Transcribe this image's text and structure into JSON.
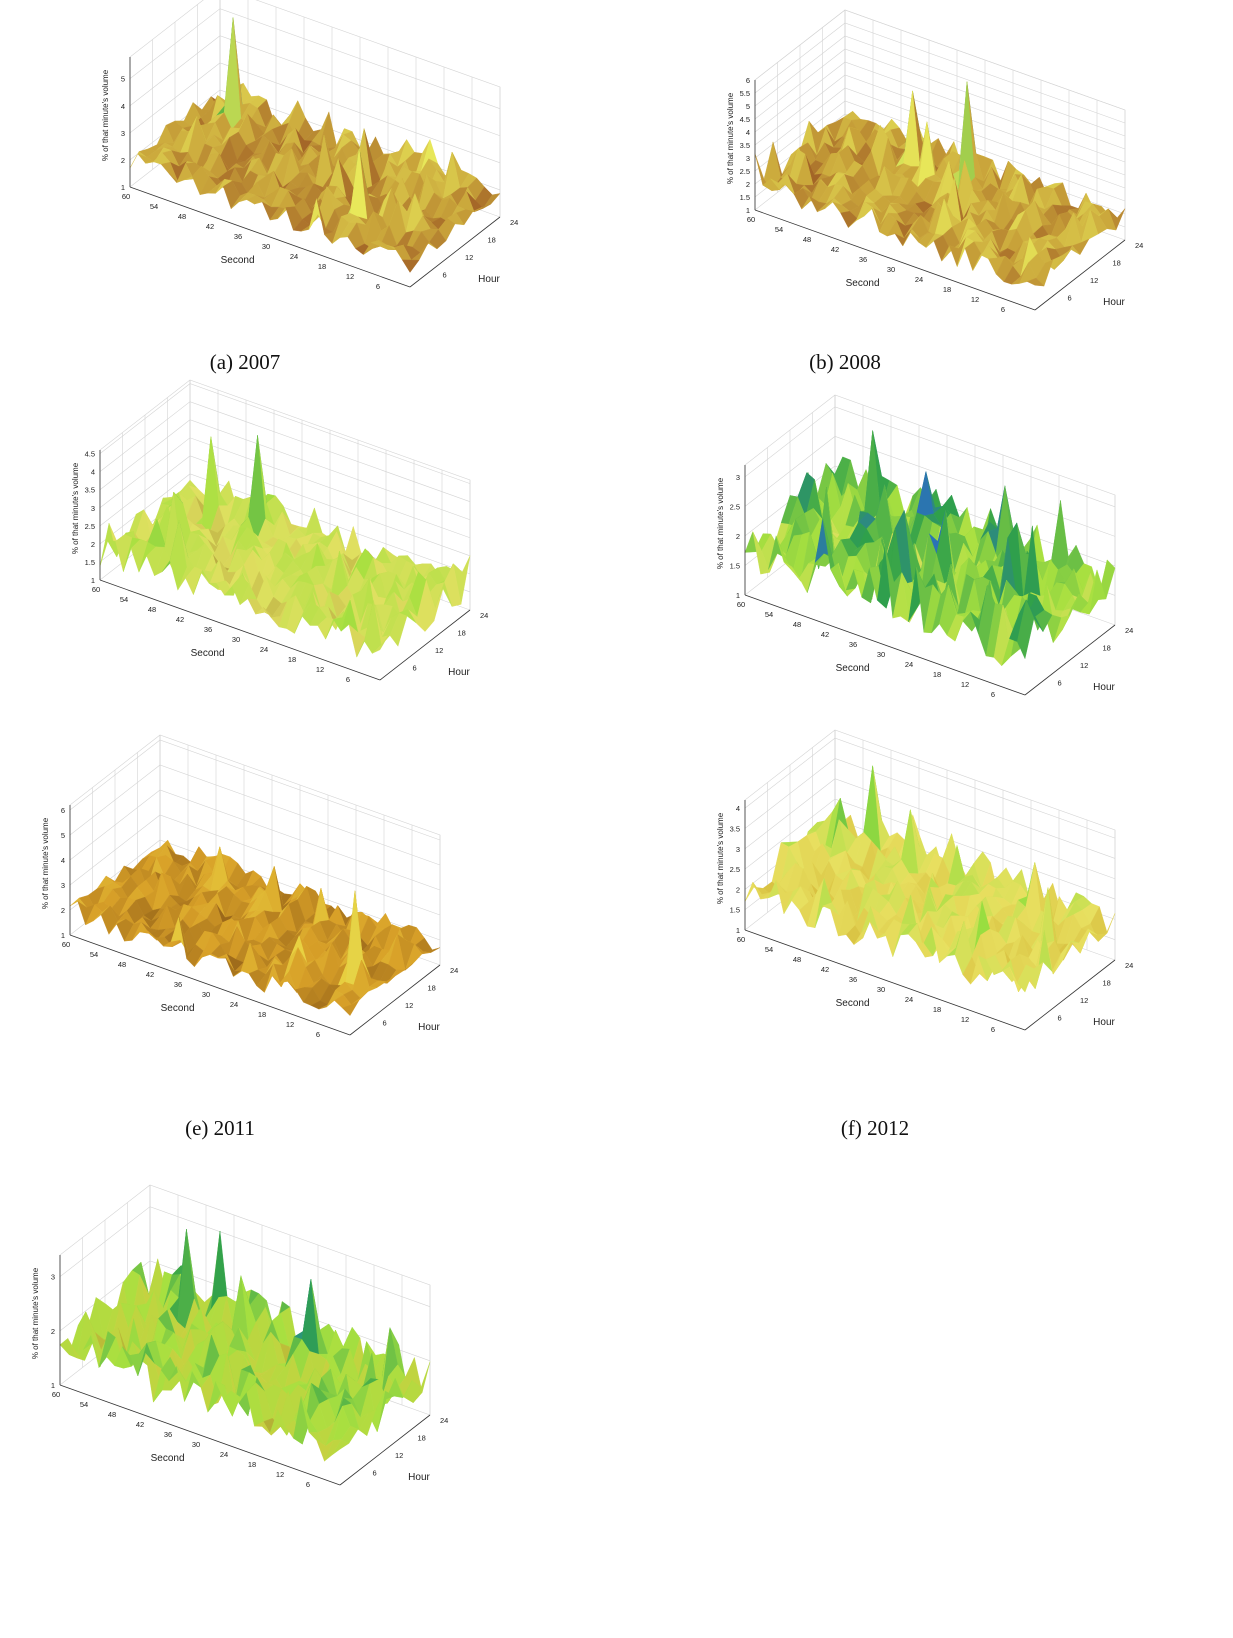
{
  "chart_data": [
    {
      "type": "surface3d",
      "caption": "(a) 2007",
      "xlabel": "Second",
      "ylabel": "Hour",
      "zlabel": "% of that minute's volume",
      "x_ticks": [
        "60",
        "54",
        "48",
        "42",
        "36",
        "30",
        "24",
        "18",
        "12",
        "6"
      ],
      "y_ticks": [
        "6",
        "12",
        "18",
        "24"
      ],
      "z_ticks": [
        "1",
        "2",
        "3",
        "4",
        "5"
      ],
      "zlim": [
        1,
        5.8
      ],
      "base_level": 1.9,
      "peaks": [
        {
          "second": 53,
          "hour": 20,
          "value": 5.6
        },
        {
          "second": 17,
          "hour": 6,
          "value": 4.3
        },
        {
          "second": 24,
          "hour": 16,
          "value": 3.6
        },
        {
          "second": 7,
          "hour": 10,
          "value": 3.0
        }
      ],
      "colors": [
        "#7a1f12",
        "#c9a43a",
        "#e8e85a",
        "#3aa83a",
        "#2a7fa0",
        "#3a2a9a"
      ]
    },
    {
      "type": "surface3d",
      "caption": "(b) 2008",
      "xlabel": "Second",
      "ylabel": "Hour",
      "zlabel": "% of that minute's volume",
      "x_ticks": [
        "60",
        "54",
        "48",
        "42",
        "36",
        "30",
        "24",
        "18",
        "12",
        "6"
      ],
      "y_ticks": [
        "6",
        "12",
        "18",
        "24"
      ],
      "z_ticks": [
        "1",
        "1.5",
        "2",
        "2.5",
        "3",
        "3.5",
        "4",
        "4.5",
        "5",
        "5.5",
        "6"
      ],
      "zlim": [
        1,
        6
      ],
      "base_level": 2.0,
      "peaks": [
        {
          "second": 30,
          "hour": 20,
          "value": 5.7
        },
        {
          "second": 42,
          "hour": 18,
          "value": 4.6
        },
        {
          "second": 36,
          "hour": 16,
          "value": 4.0
        }
      ],
      "colors": [
        "#7a1f12",
        "#c9a43a",
        "#e8e85a",
        "#3aa83a",
        "#2a7fa0",
        "#3a2a9a"
      ]
    },
    {
      "type": "surface3d",
      "caption": "",
      "xlabel": "Second",
      "ylabel": "Hour",
      "zlabel": "% of that minute's volume",
      "x_ticks": [
        "60",
        "54",
        "48",
        "42",
        "36",
        "30",
        "24",
        "18",
        "12",
        "6"
      ],
      "y_ticks": [
        "6",
        "12",
        "18",
        "24"
      ],
      "z_ticks": [
        "1",
        "1.5",
        "2",
        "2.5",
        "3",
        "3.5",
        "4",
        "4.5"
      ],
      "zlim": [
        1,
        4.6
      ],
      "base_level": 1.8,
      "peaks": [
        {
          "second": 42,
          "hour": 20,
          "value": 4.3
        },
        {
          "second": 52,
          "hour": 20,
          "value": 3.8
        }
      ],
      "colors": [
        "#8a6a1a",
        "#e0e060",
        "#a8e040",
        "#2fa04a",
        "#2a7fa0",
        "#4a1a7a"
      ]
    },
    {
      "type": "surface3d",
      "caption": "",
      "xlabel": "Second",
      "ylabel": "Hour",
      "zlabel": "% of that minute's volume",
      "x_ticks": [
        "60",
        "54",
        "48",
        "42",
        "36",
        "30",
        "24",
        "18",
        "12",
        "6"
      ],
      "y_ticks": [
        "6",
        "12",
        "18",
        "24"
      ],
      "z_ticks": [
        "1",
        "1.5",
        "2",
        "2.5",
        "3"
      ],
      "zlim": [
        1,
        3.2
      ],
      "base_level": 1.8,
      "peaks": [
        {
          "second": 50,
          "hour": 22,
          "value": 3.0
        },
        {
          "second": 36,
          "hour": 18,
          "value": 2.8
        }
      ],
      "colors": [
        "#8a6a1a",
        "#e0e060",
        "#a8e040",
        "#2fa04a",
        "#2a6fc0",
        "#2a2a9a"
      ]
    },
    {
      "type": "surface3d",
      "caption": "(e) 2011",
      "xlabel": "Second",
      "ylabel": "Hour",
      "zlabel": "% of that minute's volume",
      "x_ticks": [
        "60",
        "54",
        "48",
        "42",
        "36",
        "30",
        "24",
        "18",
        "12",
        "6"
      ],
      "y_ticks": [
        "6",
        "12",
        "18",
        "24"
      ],
      "z_ticks": [
        "1",
        "2",
        "3",
        "4",
        "5",
        "6"
      ],
      "zlim": [
        1,
        6.2
      ],
      "base_level": 1.9,
      "peaks": [
        {
          "second": 6,
          "hour": 10,
          "value": 5.2
        },
        {
          "second": 44,
          "hour": 18,
          "value": 3.4
        },
        {
          "second": 32,
          "hour": 18,
          "value": 3.4
        }
      ],
      "colors": [
        "#7a4a12",
        "#d8a028",
        "#e8d040",
        "#dfe060",
        "#3aa83a",
        "#3a2a9a"
      ]
    },
    {
      "type": "surface3d",
      "caption": "(f) 2012",
      "xlabel": "Second",
      "ylabel": "Hour",
      "zlabel": "% of that minute's volume",
      "x_ticks": [
        "60",
        "54",
        "48",
        "42",
        "36",
        "30",
        "24",
        "18",
        "12",
        "6"
      ],
      "y_ticks": [
        "6",
        "12",
        "18",
        "24"
      ],
      "z_ticks": [
        "1",
        "1.5",
        "2",
        "2.5",
        "3",
        "3.5",
        "4"
      ],
      "zlim": [
        1,
        4.2
      ],
      "base_level": 2.0,
      "peaks": [
        {
          "second": 50,
          "hour": 22,
          "value": 3.9
        },
        {
          "second": 40,
          "hour": 20,
          "value": 3.4
        },
        {
          "second": 14,
          "hour": 20,
          "value": 3.2
        },
        {
          "second": 6,
          "hour": 14,
          "value": 3.2
        }
      ],
      "colors": [
        "#8a6a1a",
        "#d8c040",
        "#e8e060",
        "#9adf40",
        "#2fa04a",
        "#2a2a9a"
      ]
    },
    {
      "type": "surface3d",
      "caption": "",
      "xlabel": "Second",
      "ylabel": "Hour",
      "zlabel": "% of that minute's volume",
      "x_ticks": [
        "60",
        "54",
        "48",
        "42",
        "36",
        "30",
        "24",
        "18",
        "12",
        "6"
      ],
      "y_ticks": [
        "6",
        "12",
        "18",
        "24"
      ],
      "z_ticks": [
        "1",
        "2",
        "3"
      ],
      "zlim": [
        1,
        3.4
      ],
      "base_level": 1.7,
      "peaks": [
        {
          "second": 48,
          "hour": 20,
          "value": 3.2
        },
        {
          "second": 22,
          "hour": 20,
          "value": 3.1
        },
        {
          "second": 36,
          "hour": 20,
          "value": 2.7
        }
      ],
      "colors": [
        "#8a6a1a",
        "#c8d040",
        "#a8e040",
        "#2fa04a",
        "#2a8fa0",
        "#2a2a9a"
      ]
    }
  ]
}
